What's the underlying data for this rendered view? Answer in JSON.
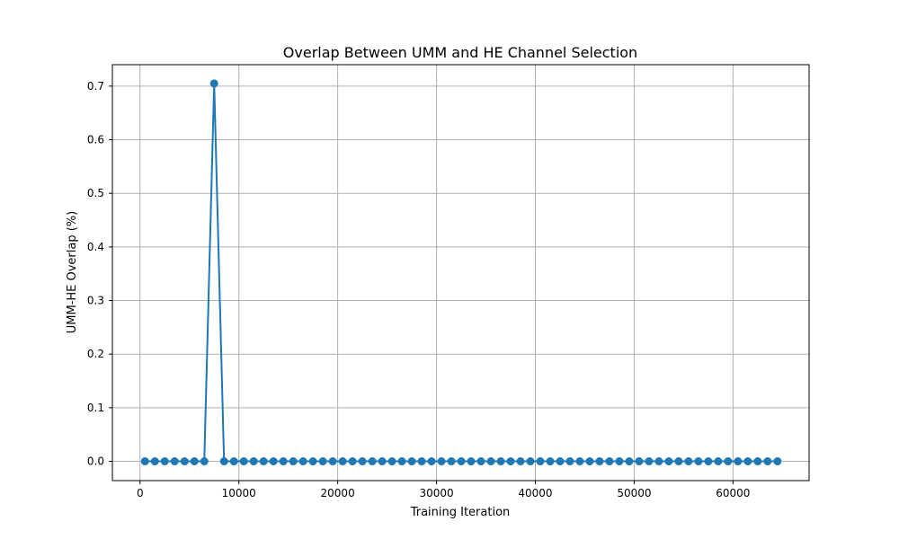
{
  "chart_data": {
    "type": "line",
    "title": "Overlap Between UMM and HE Channel Selection",
    "xlabel": "Training Iteration",
    "ylabel": "UMM-HE Overlap (%)",
    "xlim": [
      -2800,
      67700
    ],
    "ylim": [
      -0.036,
      0.74
    ],
    "xticks": [
      0,
      10000,
      20000,
      30000,
      40000,
      50000,
      60000
    ],
    "xtick_labels": [
      "0",
      "10000",
      "20000",
      "30000",
      "40000",
      "50000",
      "60000"
    ],
    "yticks": [
      0.0,
      0.1,
      0.2,
      0.3,
      0.4,
      0.5,
      0.6,
      0.7
    ],
    "ytick_labels": [
      "0.0",
      "0.1",
      "0.2",
      "0.3",
      "0.4",
      "0.5",
      "0.6",
      "0.7"
    ],
    "grid": true,
    "legend": "none",
    "colors": {
      "series": "#1f77b4",
      "grid": "#b0b0b0",
      "axes": "#000000"
    },
    "series": [
      {
        "x": [
          500,
          1500,
          2500,
          3500,
          4500,
          5500,
          6500,
          7500,
          8500,
          9500,
          10500,
          11500,
          12500,
          13500,
          14500,
          15500,
          16500,
          17500,
          18500,
          19500,
          20500,
          21500,
          22500,
          23500,
          24500,
          25500,
          26500,
          27500,
          28500,
          29500,
          30500,
          31500,
          32500,
          33500,
          34500,
          35500,
          36500,
          37500,
          38500,
          39500,
          40500,
          41500,
          42500,
          43500,
          44500,
          45500,
          46500,
          47500,
          48500,
          49500,
          50500,
          51500,
          52500,
          53500,
          54500,
          55500,
          56500,
          57500,
          58500,
          59500,
          60500,
          61500,
          62500,
          63500,
          64500
        ],
        "values": [
          0,
          0,
          0,
          0,
          0,
          0,
          0,
          0.705,
          0,
          0,
          0,
          0,
          0,
          0,
          0,
          0,
          0,
          0,
          0,
          0,
          0,
          0,
          0,
          0,
          0,
          0,
          0,
          0,
          0,
          0,
          0,
          0,
          0,
          0,
          0,
          0,
          0,
          0,
          0,
          0,
          0,
          0,
          0,
          0,
          0,
          0,
          0,
          0,
          0,
          0,
          0,
          0,
          0,
          0,
          0,
          0,
          0,
          0,
          0,
          0,
          0,
          0,
          0,
          0,
          0
        ]
      }
    ]
  }
}
